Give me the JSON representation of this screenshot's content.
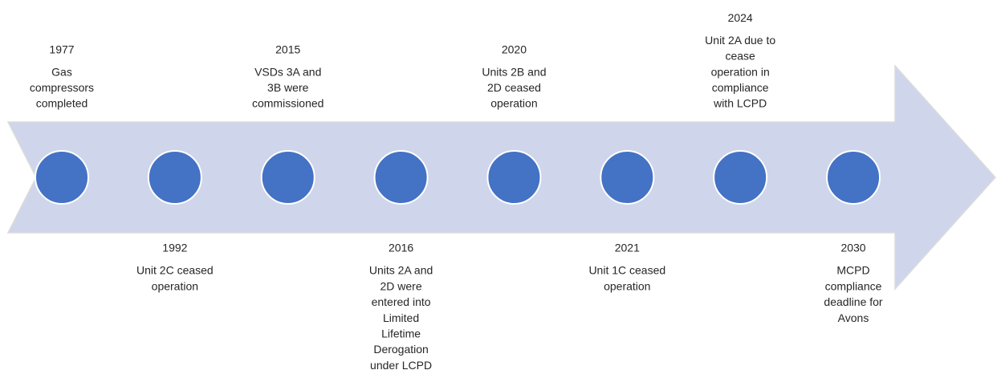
{
  "events": [
    {
      "year": "1977",
      "lines": [
        "Gas",
        "compressors",
        "completed"
      ]
    },
    {
      "year": "1992",
      "lines": [
        "Unit 2C ceased",
        "operation"
      ]
    },
    {
      "year": "2015",
      "lines": [
        "VSDs 3A and",
        "3B were",
        "commissioned"
      ]
    },
    {
      "year": "2016",
      "lines": [
        "Units 2A and",
        "2D were",
        "entered into",
        "Limited",
        "Lifetime",
        "Derogation",
        "under LCPD"
      ]
    },
    {
      "year": "2020",
      "lines": [
        "Units 2B and",
        "2D ceased",
        "operation"
      ]
    },
    {
      "year": "2021",
      "lines": [
        "Unit 1C ceased",
        "operation"
      ]
    },
    {
      "year": "2024",
      "lines": [
        "Unit 2A due to",
        "cease",
        "operation in",
        "compliance",
        "with LCPD"
      ]
    },
    {
      "year": "2030",
      "lines": [
        "MCPD",
        "compliance",
        "deadline for",
        "Avons"
      ]
    }
  ]
}
